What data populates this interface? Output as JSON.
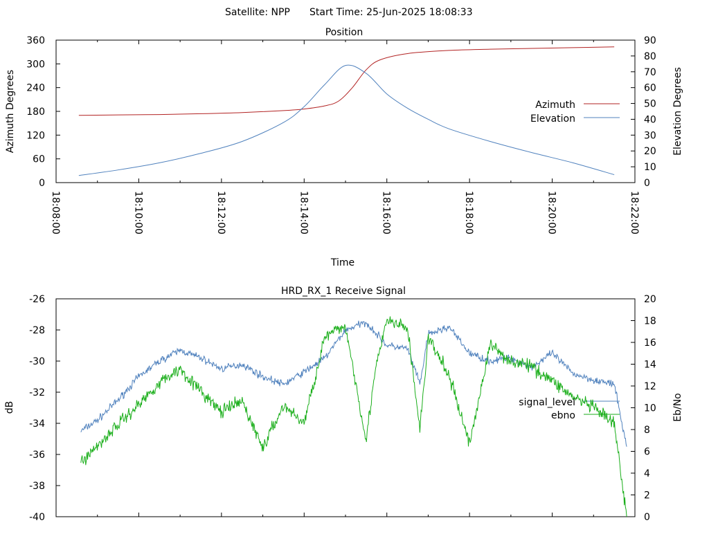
{
  "header": {
    "satellite": "Satellite: NPP",
    "start_time": "Start Time: 25-Jun-2025 18:08:33"
  },
  "chart_data": [
    {
      "type": "line",
      "title": "Position",
      "xlabel": "Time",
      "ylabel": "Azimuth Degrees",
      "y2label": "Elevation Degrees",
      "xlim": [
        "18:08:00",
        "18:22:00"
      ],
      "xticks": [
        "18:08:00",
        "18:10:00",
        "18:12:00",
        "18:14:00",
        "18:16:00",
        "18:18:00",
        "18:20:00",
        "18:22:00"
      ],
      "ylim": [
        0,
        360
      ],
      "yticks": [
        0,
        60,
        120,
        180,
        240,
        300,
        360
      ],
      "y2lim": [
        0,
        90
      ],
      "y2ticks": [
        0,
        10,
        20,
        30,
        40,
        50,
        60,
        70,
        80,
        90
      ],
      "grid": false,
      "legend_position": "right",
      "series": [
        {
          "name": "Azimuth",
          "axis": "left",
          "color": "#b22222",
          "x": [
            "18:08:33",
            "18:09:30",
            "18:10:30",
            "18:11:30",
            "18:12:30",
            "18:13:30",
            "18:14:00",
            "18:14:30",
            "18:14:50",
            "18:15:10",
            "18:15:30",
            "18:15:50",
            "18:16:30",
            "18:17:30",
            "18:18:30",
            "18:19:30",
            "18:20:30",
            "18:21:30"
          ],
          "values": [
            170,
            171,
            172,
            174,
            177,
            182,
            186,
            194,
            206,
            240,
            285,
            310,
            326,
            334,
            337,
            339,
            341,
            343
          ]
        },
        {
          "name": "Elevation",
          "axis": "right",
          "color": "#4f81bd",
          "x": [
            "18:08:33",
            "18:09:30",
            "18:10:30",
            "18:11:30",
            "18:12:30",
            "18:13:30",
            "18:14:00",
            "18:14:30",
            "18:15:00",
            "18:15:30",
            "18:16:00",
            "18:16:30",
            "18:17:00",
            "18:17:30",
            "18:18:30",
            "18:19:30",
            "18:20:30",
            "18:21:30"
          ],
          "values": [
            4.5,
            8,
            12.5,
            18.5,
            26,
            38,
            48,
            62,
            74,
            69,
            56,
            47,
            40,
            34,
            26,
            19,
            12.5,
            5
          ]
        }
      ]
    },
    {
      "type": "line",
      "title": "HRD_RX_1 Receive Signal",
      "ylabel": "dB",
      "y2label": "Eb/No",
      "ylim": [
        -40,
        -26
      ],
      "yticks": [
        -40,
        -38,
        -36,
        -34,
        -32,
        -30,
        -28,
        -26
      ],
      "y2lim": [
        0,
        20
      ],
      "y2ticks": [
        0,
        2,
        4,
        6,
        8,
        10,
        12,
        14,
        16,
        18,
        20
      ],
      "grid": false,
      "legend_position": "right",
      "series": [
        {
          "name": "signal_level",
          "axis": "left",
          "color": "#4f81bd",
          "t_min": [
            0.6,
            1.0,
            1.5,
            2.0,
            2.5,
            3.0,
            3.5,
            4.0,
            4.5,
            5.0,
            5.5,
            6.0,
            6.5,
            7.0,
            7.5,
            8.0,
            8.5,
            8.8,
            9.0,
            9.5,
            10.0,
            10.5,
            11.0,
            11.5,
            12.0,
            12.5,
            13.0,
            13.5,
            13.8
          ],
          "values": [
            -34.5,
            -33.8,
            -32.5,
            -31.0,
            -30.0,
            -29.3,
            -29.8,
            -30.5,
            -30.2,
            -31.0,
            -31.5,
            -30.7,
            -29.8,
            -28.0,
            -27.5,
            -29.0,
            -29.2,
            -31.5,
            -28.3,
            -27.8,
            -29.5,
            -30.0,
            -29.8,
            -30.4,
            -29.5,
            -30.8,
            -31.2,
            -31.5,
            -35.5
          ]
        },
        {
          "name": "ebno",
          "axis": "right",
          "color": "#1aae1a",
          "t_min": [
            0.6,
            1.0,
            1.5,
            2.0,
            2.5,
            3.0,
            3.5,
            4.0,
            4.5,
            5.0,
            5.5,
            6.0,
            6.5,
            7.0,
            7.5,
            7.7,
            8.0,
            8.5,
            8.8,
            9.0,
            9.5,
            10.0,
            10.5,
            11.0,
            11.5,
            12.0,
            12.5,
            13.0,
            13.5,
            13.8
          ],
          "values": [
            5.0,
            6.5,
            8.5,
            10.3,
            12.3,
            13.6,
            11.5,
            9.6,
            10.6,
            6.3,
            10.2,
            8.6,
            16.5,
            17.5,
            7.0,
            13.0,
            18.0,
            17.3,
            8.0,
            16.4,
            13.0,
            6.7,
            15.8,
            14.3,
            13.8,
            12.5,
            11.0,
            10.0,
            8.5,
            0.0
          ]
        }
      ]
    }
  ]
}
